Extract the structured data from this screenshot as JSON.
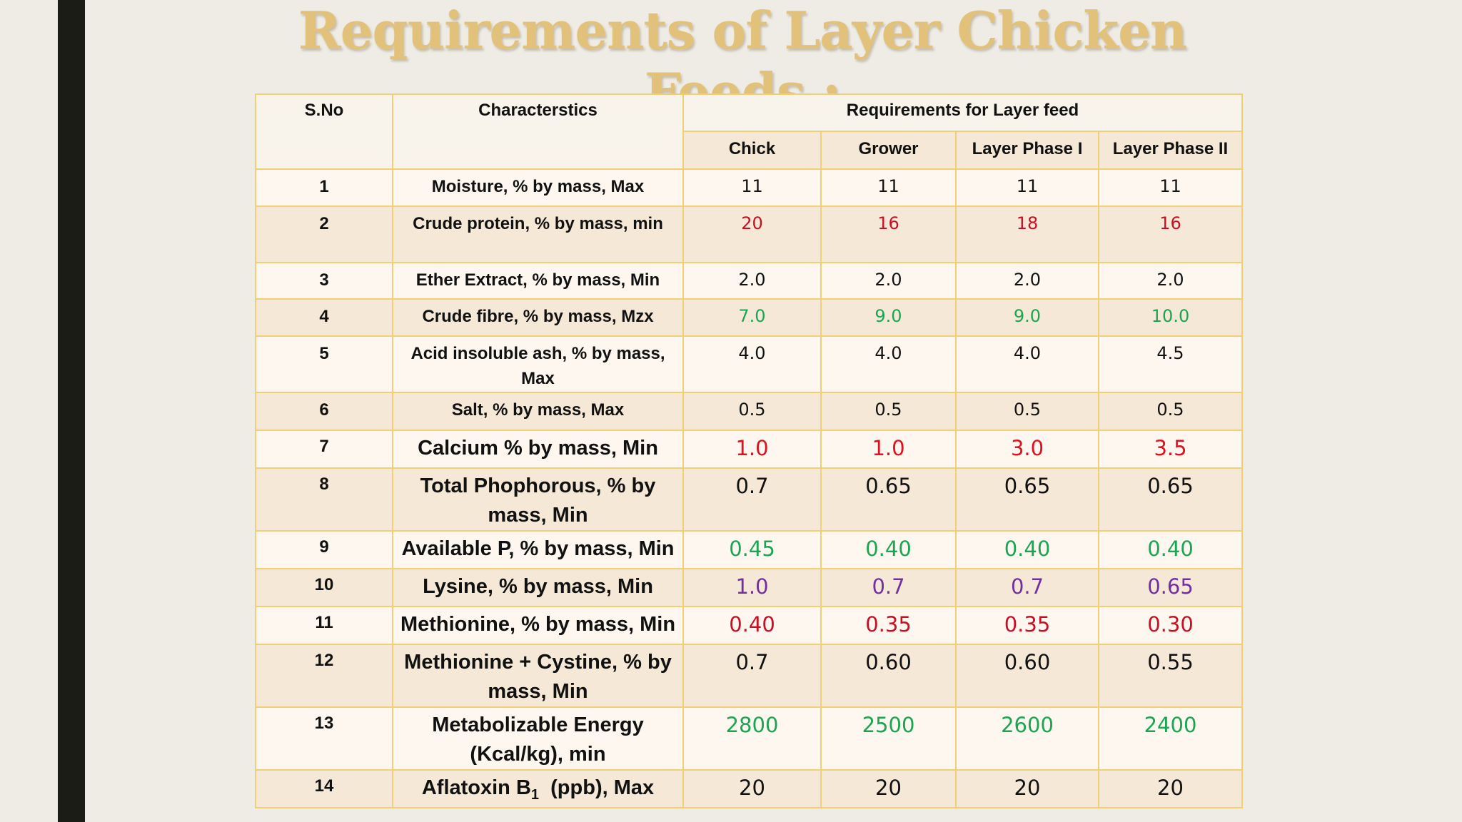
{
  "title": "Requirements of Layer Chicken Feeds :",
  "colors": {
    "title": "#e2c27a",
    "border": "#f1cf78",
    "red": "#c80f23",
    "bright_red": "#e0101e",
    "green": "#1aa552",
    "purple": "#7030a0",
    "left_bar": "#1c1c16"
  },
  "table": {
    "headers": {
      "sno": "S.No",
      "characteristics": "Characterstics",
      "group": "Requirements for Layer feed",
      "chick": "Chick",
      "grower": "Grower",
      "layer1": "Layer Phase I",
      "layer2": "Layer Phase II"
    },
    "rows": [
      {
        "sno": "1",
        "name": "Moisture, % by mass, Max",
        "chick": "11",
        "grower": "11",
        "layer1": "11",
        "layer2": "11"
      },
      {
        "sno": "2",
        "name": "Crude protein, % by mass, min",
        "chick": "20",
        "grower": "16",
        "layer1": "18",
        "layer2": "16"
      },
      {
        "sno": "3",
        "name": "Ether Extract, % by mass, Min",
        "chick": "2.0",
        "grower": "2.0",
        "layer1": "2.0",
        "layer2": "2.0"
      },
      {
        "sno": "4",
        "name": "Crude fibre, % by mass, Mzx",
        "chick": "7.0",
        "grower": "9.0",
        "layer1": "9.0",
        "layer2": "10.0"
      },
      {
        "sno": "5",
        "name": "Acid insoluble ash, % by mass, Max",
        "chick": "4.0",
        "grower": "4.0",
        "layer1": "4.0",
        "layer2": "4.5"
      },
      {
        "sno": "6",
        "name": "Salt, % by mass, Max",
        "chick": "0.5",
        "grower": "0.5",
        "layer1": "0.5",
        "layer2": "0.5"
      },
      {
        "sno": "7",
        "name": "Calcium % by mass, Min",
        "chick": "1.0",
        "grower": "1.0",
        "layer1": "3.0",
        "layer2": "3.5"
      },
      {
        "sno": "8",
        "name": "Total Phophorous, % by mass, Min",
        "chick": "0.7",
        "grower": "0.65",
        "layer1": "0.65",
        "layer2": "0.65"
      },
      {
        "sno": "9",
        "name": "Available P, % by mass, Min",
        "chick": "0.45",
        "grower": "0.40",
        "layer1": "0.40",
        "layer2": "0.40"
      },
      {
        "sno": "10",
        "name": "Lysine, % by mass, Min",
        "chick": "1.0",
        "grower": "0.7",
        "layer1": "0.7",
        "layer2": "0.65"
      },
      {
        "sno": "11",
        "name": "Methionine, % by mass, Min",
        "chick": "0.40",
        "grower": "0.35",
        "layer1": "0.35",
        "layer2": "0.30"
      },
      {
        "sno": "12",
        "name": "Methionine + Cystine, % by mass, Min",
        "chick": "0.7",
        "grower": "0.60",
        "layer1": "0.60",
        "layer2": "0.55"
      },
      {
        "sno": "13",
        "name": "Metabolizable Energy (Kcal/kg), min",
        "chick": "2800",
        "grower": "2500",
        "layer1": "2600",
        "layer2": "2400"
      },
      {
        "sno": "14",
        "name_prefix": "Aflatoxin B",
        "name_sub": "1",
        "name_suffix": "  (ppb), Max",
        "chick": "20",
        "grower": "20",
        "layer1": "20",
        "layer2": "20"
      }
    ]
  }
}
